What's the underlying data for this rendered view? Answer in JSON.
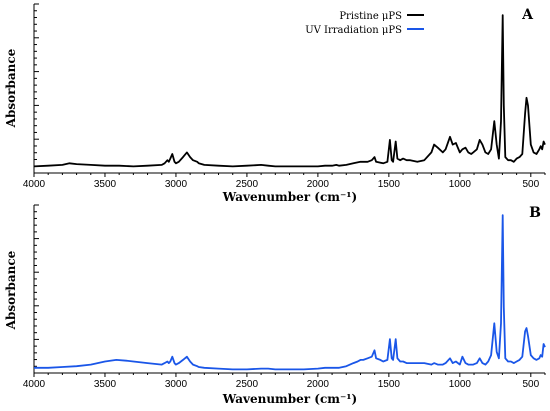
{
  "chart_data": [
    {
      "type": "line",
      "panel_label": "A",
      "xlabel": "Wavenumber (cm⁻¹)",
      "ylabel": "Absorbance",
      "xlim": [
        4000,
        400
      ],
      "x_ticks": [
        4000,
        3500,
        3000,
        2500,
        2000,
        1500,
        1000,
        500
      ],
      "ylim": [
        0,
        1
      ],
      "grid": false,
      "legend": {
        "placement": "top-right",
        "entries": [
          "Pristine μPS",
          "UV Irradiation μPS"
        ]
      },
      "series": [
        {
          "name": "Pristine μPS",
          "color": "#000000",
          "x": [
            4000,
            3900,
            3800,
            3750,
            3700,
            3600,
            3500,
            3400,
            3300,
            3200,
            3100,
            3080,
            3060,
            3050,
            3040,
            3026,
            3010,
            3000,
            2980,
            2950,
            2923,
            2900,
            2880,
            2850,
            2840,
            2800,
            2700,
            2600,
            2500,
            2400,
            2350,
            2300,
            2200,
            2100,
            2000,
            1950,
            1900,
            1870,
            1850,
            1800,
            1750,
            1700,
            1650,
            1620,
            1601,
            1590,
            1540,
            1510,
            1493,
            1480,
            1470,
            1452,
            1440,
            1420,
            1400,
            1375,
            1350,
            1300,
            1250,
            1200,
            1181,
            1155,
            1120,
            1100,
            1069,
            1050,
            1028,
            1000,
            982,
            960,
            940,
            920,
            906,
            880,
            860,
            841,
            820,
            800,
            780,
            757,
            740,
            725,
            710,
            698,
            690,
            680,
            660,
            640,
            620,
            600,
            580,
            560,
            540,
            530,
            520,
            500,
            480,
            460,
            440,
            430,
            420,
            410,
            400
          ],
          "y": [
            0.01,
            0.015,
            0.02,
            0.03,
            0.025,
            0.02,
            0.015,
            0.015,
            0.01,
            0.015,
            0.02,
            0.03,
            0.05,
            0.04,
            0.06,
            0.09,
            0.04,
            0.03,
            0.04,
            0.07,
            0.1,
            0.07,
            0.05,
            0.04,
            0.03,
            0.02,
            0.015,
            0.01,
            0.015,
            0.02,
            0.015,
            0.01,
            0.01,
            0.01,
            0.01,
            0.015,
            0.015,
            0.02,
            0.015,
            0.02,
            0.03,
            0.04,
            0.04,
            0.05,
            0.07,
            0.04,
            0.03,
            0.04,
            0.18,
            0.05,
            0.04,
            0.17,
            0.06,
            0.05,
            0.06,
            0.05,
            0.05,
            0.04,
            0.05,
            0.1,
            0.15,
            0.13,
            0.1,
            0.12,
            0.2,
            0.15,
            0.16,
            0.1,
            0.12,
            0.13,
            0.1,
            0.09,
            0.1,
            0.12,
            0.18,
            0.15,
            0.1,
            0.09,
            0.12,
            0.3,
            0.15,
            0.06,
            0.3,
            0.98,
            0.4,
            0.07,
            0.05,
            0.05,
            0.04,
            0.06,
            0.07,
            0.09,
            0.35,
            0.45,
            0.4,
            0.15,
            0.1,
            0.09,
            0.12,
            0.14,
            0.12,
            0.17,
            0.15
          ]
        }
      ]
    },
    {
      "type": "line",
      "panel_label": "B",
      "xlabel": "Wavenumber (cm⁻¹)",
      "ylabel": "Absorbance",
      "xlim": [
        4000,
        400
      ],
      "x_ticks": [
        4000,
        3500,
        3000,
        2500,
        2000,
        1500,
        1000,
        500
      ],
      "ylim": [
        0,
        1
      ],
      "grid": false,
      "series": [
        {
          "name": "UV Irradiation μPS",
          "color": "#1a56e8",
          "x": [
            4000,
            3900,
            3800,
            3700,
            3600,
            3500,
            3420,
            3350,
            3300,
            3200,
            3100,
            3080,
            3060,
            3050,
            3040,
            3026,
            3010,
            3000,
            2980,
            2950,
            2923,
            2900,
            2880,
            2850,
            2840,
            2800,
            2700,
            2600,
            2500,
            2400,
            2350,
            2300,
            2200,
            2100,
            2000,
            1950,
            1900,
            1850,
            1800,
            1750,
            1720,
            1700,
            1680,
            1650,
            1620,
            1601,
            1590,
            1560,
            1540,
            1510,
            1493,
            1480,
            1470,
            1452,
            1440,
            1420,
            1400,
            1375,
            1350,
            1300,
            1250,
            1200,
            1181,
            1155,
            1120,
            1100,
            1069,
            1050,
            1028,
            1000,
            982,
            960,
            940,
            920,
            906,
            880,
            860,
            841,
            820,
            800,
            780,
            757,
            740,
            725,
            710,
            698,
            690,
            680,
            660,
            640,
            620,
            600,
            580,
            560,
            540,
            530,
            520,
            500,
            480,
            460,
            440,
            430,
            420,
            410,
            400
          ],
          "y": [
            0.02,
            0.02,
            0.025,
            0.03,
            0.04,
            0.06,
            0.07,
            0.065,
            0.06,
            0.05,
            0.04,
            0.05,
            0.06,
            0.05,
            0.06,
            0.09,
            0.05,
            0.04,
            0.05,
            0.07,
            0.09,
            0.06,
            0.04,
            0.03,
            0.025,
            0.02,
            0.015,
            0.01,
            0.01,
            0.015,
            0.015,
            0.01,
            0.01,
            0.01,
            0.015,
            0.02,
            0.02,
            0.02,
            0.03,
            0.05,
            0.06,
            0.07,
            0.07,
            0.08,
            0.09,
            0.13,
            0.08,
            0.07,
            0.06,
            0.07,
            0.2,
            0.08,
            0.07,
            0.2,
            0.08,
            0.06,
            0.06,
            0.05,
            0.05,
            0.05,
            0.05,
            0.04,
            0.05,
            0.04,
            0.04,
            0.05,
            0.08,
            0.05,
            0.06,
            0.04,
            0.09,
            0.05,
            0.04,
            0.04,
            0.04,
            0.05,
            0.08,
            0.05,
            0.04,
            0.06,
            0.1,
            0.3,
            0.12,
            0.08,
            0.3,
            0.98,
            0.4,
            0.08,
            0.06,
            0.06,
            0.05,
            0.06,
            0.07,
            0.09,
            0.25,
            0.27,
            0.22,
            0.1,
            0.08,
            0.07,
            0.08,
            0.1,
            0.09,
            0.17,
            0.15
          ]
        }
      ]
    }
  ]
}
